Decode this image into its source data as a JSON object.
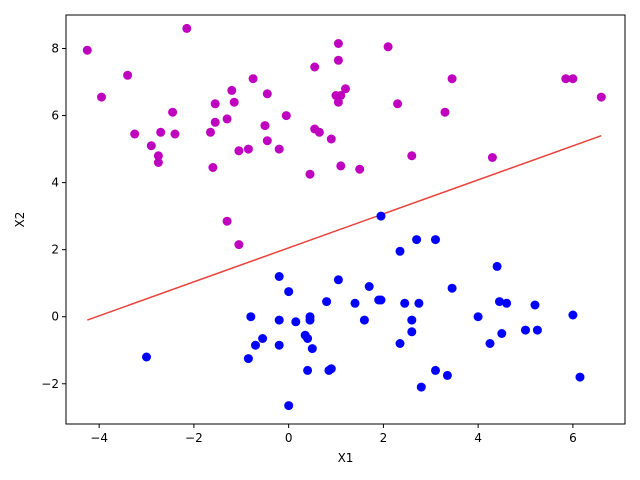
{
  "chart_data": {
    "type": "scatter",
    "xlabel": "X1",
    "ylabel": "X2",
    "xlim": [
      -4.7,
      7.1
    ],
    "ylim": [
      -3.2,
      9.0
    ],
    "x_ticks": [
      {
        "value": -4,
        "label": "−4"
      },
      {
        "value": -2,
        "label": "−2"
      },
      {
        "value": 0,
        "label": "0"
      },
      {
        "value": 2,
        "label": "2"
      },
      {
        "value": 4,
        "label": "4"
      },
      {
        "value": 6,
        "label": "6"
      }
    ],
    "y_ticks": [
      {
        "value": -2,
        "label": "−2"
      },
      {
        "value": 0,
        "label": "0"
      },
      {
        "value": 2,
        "label": "2"
      },
      {
        "value": 4,
        "label": "4"
      },
      {
        "value": 6,
        "label": "6"
      },
      {
        "value": 8,
        "label": "8"
      }
    ],
    "grid": false,
    "series": [
      {
        "color": "#bf00bf",
        "points": [
          [
            -4.25,
            7.95
          ],
          [
            -3.95,
            6.55
          ],
          [
            -3.4,
            7.2
          ],
          [
            -3.25,
            5.45
          ],
          [
            -2.9,
            5.1
          ],
          [
            -2.75,
            4.8
          ],
          [
            -2.75,
            4.6
          ],
          [
            -2.7,
            5.5
          ],
          [
            -2.45,
            6.1
          ],
          [
            -2.4,
            5.45
          ],
          [
            -2.15,
            8.6
          ],
          [
            -1.65,
            5.5
          ],
          [
            -1.6,
            4.45
          ],
          [
            -1.55,
            6.35
          ],
          [
            -1.55,
            5.8
          ],
          [
            -1.3,
            5.9
          ],
          [
            -1.2,
            6.75
          ],
          [
            -1.15,
            6.4
          ],
          [
            -1.05,
            4.95
          ],
          [
            -0.85,
            5.0
          ],
          [
            -0.75,
            7.1
          ],
          [
            -0.5,
            5.7
          ],
          [
            -0.45,
            6.65
          ],
          [
            -0.45,
            5.25
          ],
          [
            -0.2,
            5.0
          ],
          [
            -0.05,
            6.0
          ],
          [
            -1.3,
            2.85
          ],
          [
            -1.05,
            2.15
          ],
          [
            0.45,
            4.25
          ],
          [
            0.55,
            7.45
          ],
          [
            0.55,
            5.6
          ],
          [
            0.65,
            5.5
          ],
          [
            0.9,
            5.3
          ],
          [
            1.0,
            6.6
          ],
          [
            1.05,
            6.4
          ],
          [
            1.05,
            7.65
          ],
          [
            1.05,
            8.15
          ],
          [
            1.1,
            6.6
          ],
          [
            1.1,
            4.5
          ],
          [
            1.2,
            6.8
          ],
          [
            1.5,
            4.4
          ],
          [
            2.1,
            8.05
          ],
          [
            2.3,
            6.35
          ],
          [
            2.6,
            4.8
          ],
          [
            3.3,
            6.1
          ],
          [
            3.45,
            7.1
          ],
          [
            4.3,
            4.75
          ],
          [
            5.85,
            7.1
          ],
          [
            6.0,
            7.1
          ],
          [
            6.6,
            6.55
          ]
        ]
      },
      {
        "color": "#0000ff",
        "points": [
          [
            -3.0,
            -1.2
          ],
          [
            -0.85,
            -1.25
          ],
          [
            -0.8,
            0.0
          ],
          [
            -0.7,
            -0.85
          ],
          [
            -0.55,
            -0.65
          ],
          [
            -0.2,
            1.2
          ],
          [
            -0.2,
            -0.1
          ],
          [
            -0.2,
            -0.85
          ],
          [
            0.0,
            0.75
          ],
          [
            0.0,
            -2.65
          ],
          [
            0.15,
            -0.15
          ],
          [
            0.35,
            -0.55
          ],
          [
            0.4,
            -0.65
          ],
          [
            0.4,
            -1.6
          ],
          [
            0.45,
            -0.1
          ],
          [
            0.45,
            0.0
          ],
          [
            0.5,
            -0.95
          ],
          [
            0.8,
            0.45
          ],
          [
            0.85,
            -1.6
          ],
          [
            0.9,
            -1.55
          ],
          [
            1.05,
            1.1
          ],
          [
            1.4,
            0.4
          ],
          [
            1.6,
            -0.1
          ],
          [
            1.7,
            0.9
          ],
          [
            1.9,
            0.5
          ],
          [
            1.95,
            3.0
          ],
          [
            1.95,
            0.5
          ],
          [
            2.35,
            1.95
          ],
          [
            2.35,
            -0.8
          ],
          [
            2.45,
            0.4
          ],
          [
            2.6,
            -0.1
          ],
          [
            2.6,
            -0.45
          ],
          [
            2.7,
            2.3
          ],
          [
            2.75,
            0.4
          ],
          [
            2.8,
            -2.1
          ],
          [
            3.1,
            2.3
          ],
          [
            3.1,
            -1.6
          ],
          [
            3.35,
            -1.75
          ],
          [
            3.45,
            0.85
          ],
          [
            4.0,
            0.0
          ],
          [
            4.25,
            -0.8
          ],
          [
            4.4,
            1.5
          ],
          [
            4.45,
            0.45
          ],
          [
            4.5,
            -0.5
          ],
          [
            4.6,
            0.4
          ],
          [
            5.0,
            -0.4
          ],
          [
            5.2,
            0.35
          ],
          [
            5.25,
            -0.4
          ],
          [
            6.0,
            0.05
          ],
          [
            6.15,
            -1.8
          ]
        ]
      }
    ],
    "lines": [
      {
        "color": "#e8423a",
        "points": [
          [
            -4.25,
            -0.1
          ],
          [
            6.6,
            5.4
          ]
        ]
      }
    ]
  }
}
